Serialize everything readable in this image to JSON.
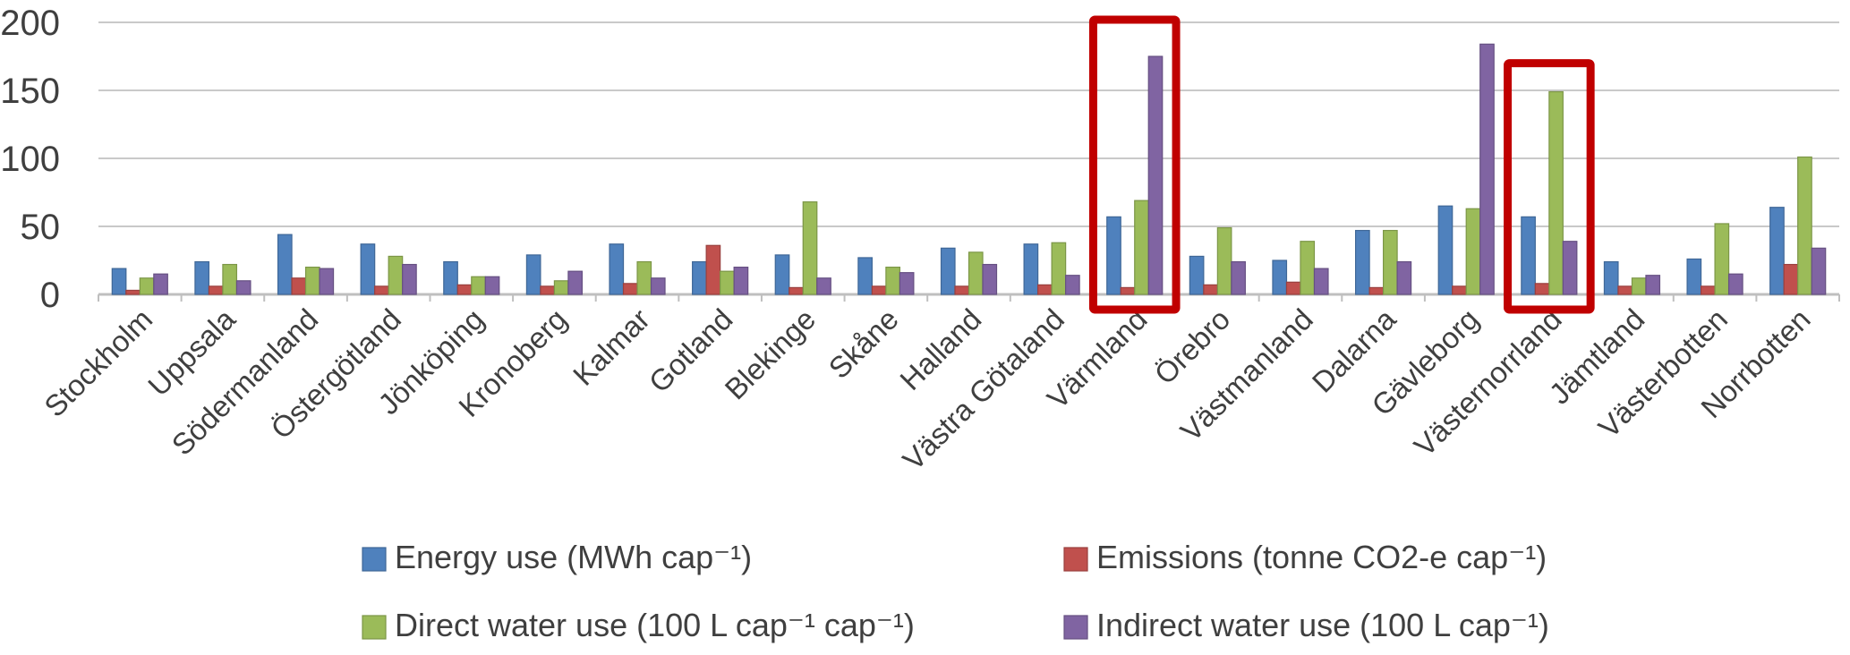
{
  "chart_data": {
    "type": "bar",
    "title": "",
    "categories": [
      "Stockholm",
      "Uppsala",
      "Södermanland",
      "Östergötland",
      "Jönköping",
      "Kronoberg",
      "Kalmar",
      "Gotland",
      "Blekinge",
      "Skåne",
      "Halland",
      "Västra Götaland",
      "Värmland",
      "Örebro",
      "Västmanland",
      "Dalarna",
      "Gävleborg",
      "Västernorrland",
      "Jämtland",
      "Västerbotten",
      "Norrbotten"
    ],
    "series": [
      {
        "name": "Energy use (MWh cap⁻¹)",
        "color": "#4F81BD",
        "values": [
          19,
          24,
          44,
          37,
          24,
          29,
          37,
          24,
          29,
          27,
          34,
          37,
          57,
          28,
          25,
          47,
          65,
          57,
          24,
          26,
          64
        ]
      },
      {
        "name": "Emissions (tonne CO2-e cap⁻¹)",
        "color": "#C0504D",
        "values": [
          3,
          6,
          12,
          6,
          7,
          6,
          8,
          36,
          5,
          6,
          6,
          7,
          5,
          7,
          9,
          5,
          6,
          8,
          6,
          6,
          22
        ]
      },
      {
        "name": "Direct water use (100 L cap⁻¹ cap⁻¹)",
        "color": "#9BBB59",
        "values": [
          12,
          22,
          20,
          28,
          13,
          10,
          24,
          17,
          68,
          20,
          31,
          38,
          69,
          49,
          39,
          47,
          63,
          149,
          12,
          52,
          101
        ]
      },
      {
        "name": "Indirect water use (100 L cap⁻¹)",
        "color": "#8064A2",
        "values": [
          15,
          10,
          19,
          22,
          13,
          17,
          12,
          20,
          12,
          16,
          22,
          14,
          175,
          24,
          19,
          24,
          184,
          39,
          14,
          15,
          34
        ]
      }
    ],
    "xlabel": "",
    "ylabel": "",
    "ylim": [
      0,
      200
    ],
    "yticks": [
      0,
      50,
      100,
      150,
      200
    ],
    "grid": true,
    "legend_position": "bottom",
    "text_color": "#3F3F3F",
    "gridline_color": "#C9C9C9",
    "highlights": [
      {
        "category": "Värmland",
        "color": "#C00000",
        "top_value": 202
      },
      {
        "category": "Västernorrland",
        "color": "#C00000",
        "top_value": 170
      }
    ]
  }
}
